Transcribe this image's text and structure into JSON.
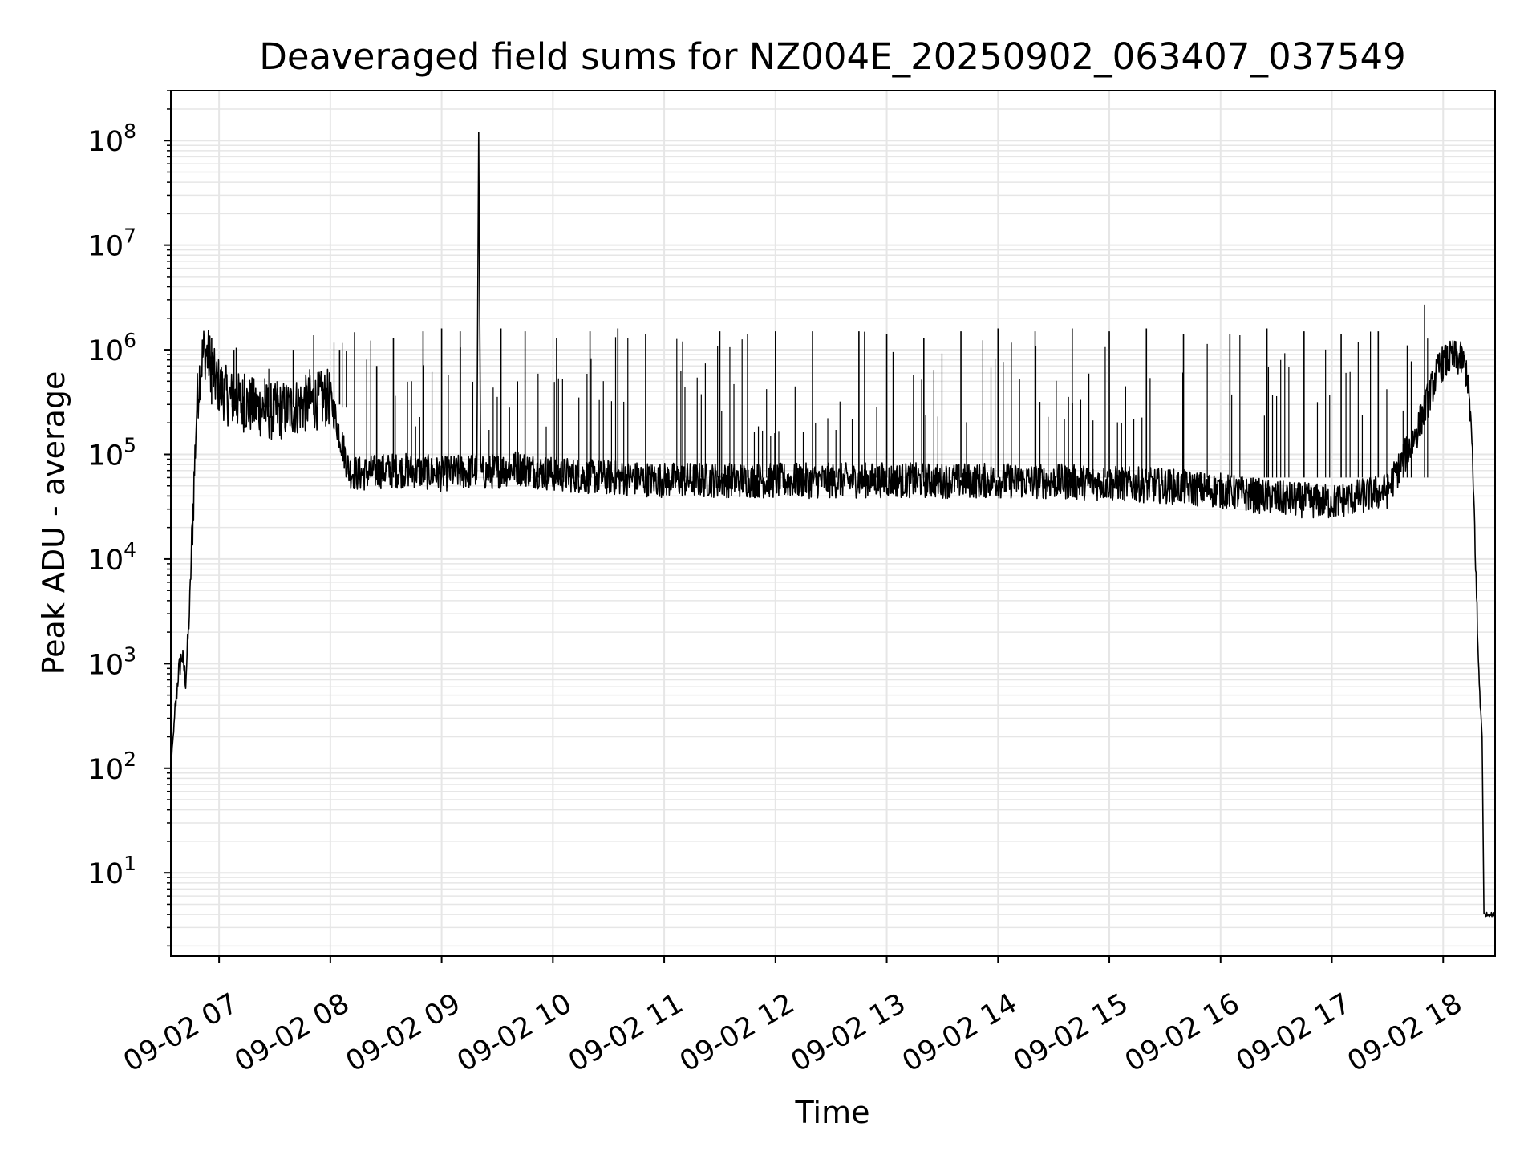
{
  "chart_data": {
    "type": "line",
    "title": "Deaveraged field sums for NZ004E_20250902_063407_037549",
    "xlabel": "Time",
    "ylabel": "Peak ADU - average",
    "yscale": "log",
    "ylim": [
      1.6,
      300000000
    ],
    "xlim": [
      "2025-09-02 06:34",
      "2025-09-02 18:28"
    ],
    "grid": true,
    "line_color": "#000000",
    "grid_color": "#e6e6e6",
    "x_ticks": [
      "2025-09-02 07:00",
      "2025-09-02 08:00",
      "2025-09-02 09:00",
      "2025-09-02 10:00",
      "2025-09-02 11:00",
      "2025-09-02 12:00",
      "2025-09-02 13:00",
      "2025-09-02 14:00",
      "2025-09-02 15:00",
      "2025-09-02 16:00",
      "2025-09-02 17:00",
      "2025-09-02 18:00"
    ],
    "x_tick_labels": [
      "09-02 07",
      "09-02 08",
      "09-02 09",
      "09-02 10",
      "09-02 11",
      "09-02 12",
      "09-02 13",
      "09-02 14",
      "09-02 15",
      "09-02 16",
      "09-02 17",
      "09-02 18"
    ],
    "y_ticks": [
      {
        "value": 10,
        "base": "10",
        "exp": "1"
      },
      {
        "value": 100,
        "base": "10",
        "exp": "2"
      },
      {
        "value": 1000,
        "base": "10",
        "exp": "3"
      },
      {
        "value": 10000,
        "base": "10",
        "exp": "4"
      },
      {
        "value": 100000,
        "base": "10",
        "exp": "5"
      },
      {
        "value": 1000000,
        "base": "10",
        "exp": "6"
      },
      {
        "value": 10000000,
        "base": "10",
        "exp": "7"
      },
      {
        "value": 100000000,
        "base": "10",
        "exp": "8"
      }
    ],
    "series": [
      {
        "x": [
          "2025-09-02 06:34",
          "2025-09-02 06:36",
          "2025-09-02 06:38",
          "2025-09-02 06:40",
          "2025-09-02 06:42",
          "2025-09-02 06:44",
          "2025-09-02 06:46",
          "2025-09-02 06:48",
          "2025-09-02 06:50",
          "2025-09-02 06:52",
          "2025-09-02 06:55",
          "2025-09-02 06:58",
          "2025-09-02 07:05",
          "2025-09-02 07:15",
          "2025-09-02 07:30",
          "2025-09-02 07:45",
          "2025-09-02 08:00",
          "2025-09-02 08:10",
          "2025-09-02 08:15",
          "2025-09-02 08:30",
          "2025-09-02 08:45",
          "2025-09-02 09:00",
          "2025-09-02 09:19",
          "2025-09-02 09:20",
          "2025-09-02 09:21",
          "2025-09-02 09:40",
          "2025-09-02 10:00",
          "2025-09-02 10:30",
          "2025-09-02 11:00",
          "2025-09-02 11:30",
          "2025-09-02 12:00",
          "2025-09-02 12:30",
          "2025-09-02 13:00",
          "2025-09-02 13:30",
          "2025-09-02 14:00",
          "2025-09-02 14:30",
          "2025-09-02 15:00",
          "2025-09-02 15:30",
          "2025-09-02 16:00",
          "2025-09-02 16:30",
          "2025-09-02 17:00",
          "2025-09-02 17:30",
          "2025-09-02 17:45",
          "2025-09-02 17:58",
          "2025-09-02 18:05",
          "2025-09-02 18:10",
          "2025-09-02 18:13",
          "2025-09-02 18:15",
          "2025-09-02 18:17",
          "2025-09-02 18:19",
          "2025-09-02 18:21",
          "2025-09-02 18:22",
          "2025-09-02 18:28"
        ],
        "y": [
          100,
          300,
          800,
          1200,
          700,
          3000,
          30000,
          300000,
          700000,
          1000000,
          800000,
          500000,
          350000,
          300000,
          250000,
          300000,
          350000,
          70000,
          65000,
          70000,
          70000,
          65000,
          70000,
          120000000,
          65000,
          75000,
          65000,
          60000,
          57000,
          57000,
          56000,
          56000,
          57000,
          56000,
          56000,
          55000,
          53000,
          50000,
          45000,
          38000,
          35000,
          45000,
          150000,
          700000,
          850000,
          800000,
          600000,
          200000,
          20000,
          1000,
          200,
          4,
          4
        ]
      }
    ],
    "spikes": [
      {
        "x": "2025-09-02 06:56",
        "y": 1300000
      },
      {
        "x": "2025-09-02 07:08",
        "y": 1000000
      },
      {
        "x": "2025-09-02 07:40",
        "y": 1000000
      },
      {
        "x": "2025-09-02 08:05",
        "y": 1000000
      },
      {
        "x": "2025-09-02 08:25",
        "y": 700000
      },
      {
        "x": "2025-09-02 08:34",
        "y": 1300000
      },
      {
        "x": "2025-09-02 08:50",
        "y": 1500000
      },
      {
        "x": "2025-09-02 09:00",
        "y": 1600000
      },
      {
        "x": "2025-09-02 09:10",
        "y": 1500000
      },
      {
        "x": "2025-09-02 09:32",
        "y": 1600000
      },
      {
        "x": "2025-09-02 09:45",
        "y": 1500000
      },
      {
        "x": "2025-09-02 10:02",
        "y": 1300000
      },
      {
        "x": "2025-09-02 10:20",
        "y": 1500000
      },
      {
        "x": "2025-09-02 10:35",
        "y": 1600000
      },
      {
        "x": "2025-09-02 10:50",
        "y": 1400000
      },
      {
        "x": "2025-09-02 11:10",
        "y": 1200000
      },
      {
        "x": "2025-09-02 11:30",
        "y": 1500000
      },
      {
        "x": "2025-09-02 11:45",
        "y": 1400000
      },
      {
        "x": "2025-09-02 12:00",
        "y": 1500000
      },
      {
        "x": "2025-09-02 12:20",
        "y": 1500000
      },
      {
        "x": "2025-09-02 12:45",
        "y": 1500000
      },
      {
        "x": "2025-09-02 13:00",
        "y": 1400000
      },
      {
        "x": "2025-09-02 13:20",
        "y": 1300000
      },
      {
        "x": "2025-09-02 13:40",
        "y": 1500000
      },
      {
        "x": "2025-09-02 14:00",
        "y": 1600000
      },
      {
        "x": "2025-09-02 14:20",
        "y": 1500000
      },
      {
        "x": "2025-09-02 14:40",
        "y": 1600000
      },
      {
        "x": "2025-09-02 15:00",
        "y": 1500000
      },
      {
        "x": "2025-09-02 15:20",
        "y": 1600000
      },
      {
        "x": "2025-09-02 15:40",
        "y": 1400000
      },
      {
        "x": "2025-09-02 16:05",
        "y": 1400000
      },
      {
        "x": "2025-09-02 16:25",
        "y": 1600000
      },
      {
        "x": "2025-09-02 16:45",
        "y": 1500000
      },
      {
        "x": "2025-09-02 17:05",
        "y": 1400000
      },
      {
        "x": "2025-09-02 17:25",
        "y": 1500000
      },
      {
        "x": "2025-09-02 17:50",
        "y": 2700000
      }
    ]
  }
}
